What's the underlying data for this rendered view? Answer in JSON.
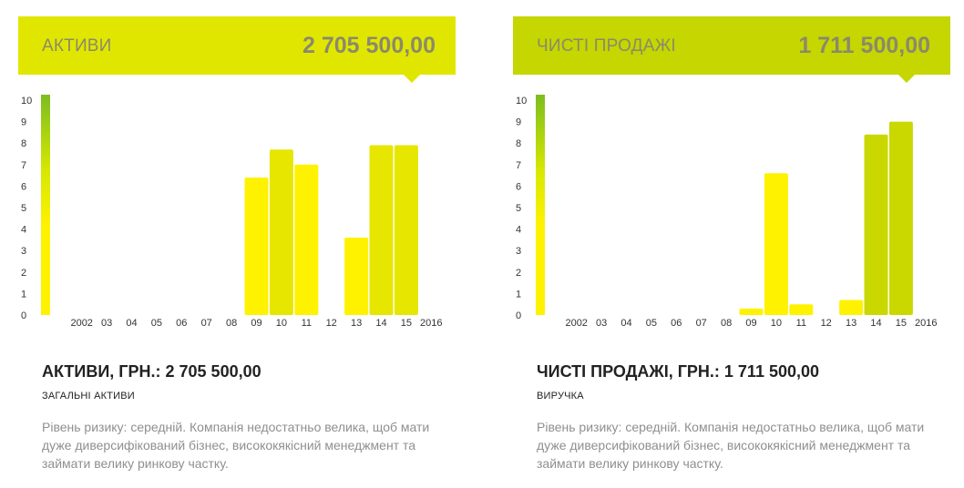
{
  "colors": {
    "banner_left": "#e1e600",
    "banner_right": "#c5d600",
    "bar_yellow": "#fff200",
    "bar_olive": "#cbd800",
    "bar_mid": "#e6e600",
    "scale_top": "#7cbd20",
    "scale_bottom": "#fff200"
  },
  "panels": [
    {
      "banner": {
        "title": "АКТИВИ",
        "value": "2 705 500,00"
      },
      "metric": {
        "title": "АКТИВИ, ГРН.: 2 705 500,00",
        "subtitle": "ЗАГАЛЬНІ АКТИВИ",
        "description": "Рівень ризику: середній. Компанія недостатньо велика, щоб мати дуже диверсифікований бізнес, висококякісний менеджмент та займати велику ринкову частку."
      }
    },
    {
      "banner": {
        "title": "ЧИСТІ ПРОДАЖІ",
        "value": "1 711 500,00"
      },
      "metric": {
        "title": "ЧИСТІ ПРОДАЖІ, ГРН.: 1 711 500,00",
        "subtitle": "ВИРУЧКА",
        "description": "Рівень ризику: середній. Компанія недостатньо велика, щоб мати дуже диверсифікований бізнес, висококякісний менеджмент та займати велику ринкову частку."
      }
    }
  ],
  "chart_data": [
    {
      "type": "bar",
      "categories": [
        "2002",
        "03",
        "04",
        "05",
        "06",
        "07",
        "08",
        "09",
        "10",
        "11",
        "12",
        "13",
        "14",
        "15",
        "2016"
      ],
      "values": [
        0,
        0,
        0,
        0,
        0,
        0,
        0,
        6.4,
        7.7,
        7.0,
        0,
        3.6,
        7.9,
        7.9,
        0
      ],
      "bar_tones": [
        "yellow",
        "yellow",
        "yellow",
        "yellow",
        "yellow",
        "yellow",
        "yellow",
        "yellow",
        "mid",
        "yellow",
        "yellow",
        "yellow",
        "mid",
        "mid",
        "yellow"
      ],
      "yticks": [
        0,
        1,
        2,
        3,
        4,
        5,
        6,
        7,
        8,
        9,
        10
      ],
      "ylim": [
        0,
        10
      ],
      "title": "",
      "xlabel": "",
      "ylabel": "",
      "grid": false
    },
    {
      "type": "bar",
      "categories": [
        "2002",
        "03",
        "04",
        "05",
        "06",
        "07",
        "08",
        "09",
        "10",
        "11",
        "12",
        "13",
        "14",
        "15",
        "2016"
      ],
      "values": [
        0,
        0,
        0,
        0,
        0,
        0,
        0,
        0.3,
        6.6,
        0.5,
        0,
        0.7,
        8.4,
        9.0,
        0
      ],
      "bar_tones": [
        "yellow",
        "yellow",
        "yellow",
        "yellow",
        "yellow",
        "yellow",
        "yellow",
        "yellow",
        "yellow",
        "yellow",
        "yellow",
        "yellow",
        "olive",
        "olive",
        "yellow"
      ],
      "yticks": [
        0,
        1,
        2,
        3,
        4,
        5,
        6,
        7,
        8,
        9,
        10
      ],
      "ylim": [
        0,
        10
      ],
      "title": "",
      "xlabel": "",
      "ylabel": "",
      "grid": false
    }
  ]
}
